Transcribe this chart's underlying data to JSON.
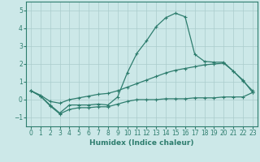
{
  "xlabel": "Humidex (Indice chaleur)",
  "bg_color": "#cce8e8",
  "grid_color": "#aacccc",
  "line_color": "#2e7d6e",
  "xlim": [
    -0.5,
    23.5
  ],
  "ylim": [
    -1.5,
    5.5
  ],
  "xticks": [
    0,
    1,
    2,
    3,
    4,
    5,
    6,
    7,
    8,
    9,
    10,
    11,
    12,
    13,
    14,
    15,
    16,
    17,
    18,
    19,
    20,
    21,
    22,
    23
  ],
  "yticks": [
    -1,
    0,
    1,
    2,
    3,
    4,
    5
  ],
  "series_spike": [
    0.5,
    0.2,
    -0.3,
    -0.75,
    -0.3,
    -0.3,
    -0.3,
    -0.25,
    -0.3,
    0.15,
    1.5,
    2.6,
    3.3,
    4.1,
    4.6,
    4.85,
    4.65,
    2.55,
    2.15,
    2.1,
    2.1,
    1.6,
    1.05,
    0.5
  ],
  "series_upper": [
    0.5,
    0.25,
    -0.1,
    -0.2,
    0.0,
    0.1,
    0.2,
    0.3,
    0.35,
    0.5,
    0.7,
    0.9,
    1.1,
    1.3,
    1.5,
    1.65,
    1.75,
    1.85,
    1.95,
    2.0,
    2.05,
    1.6,
    1.1,
    0.4
  ],
  "series_lower": [
    0.5,
    0.2,
    -0.35,
    -0.8,
    -0.55,
    -0.45,
    -0.45,
    -0.4,
    -0.4,
    -0.25,
    -0.1,
    0.0,
    0.0,
    0.0,
    0.05,
    0.05,
    0.05,
    0.1,
    0.1,
    0.1,
    0.15,
    0.15,
    0.15,
    0.4
  ],
  "xlabel_fontsize": 6.5,
  "tick_fontsize": 5.5,
  "linewidth": 0.9,
  "markersize": 3
}
